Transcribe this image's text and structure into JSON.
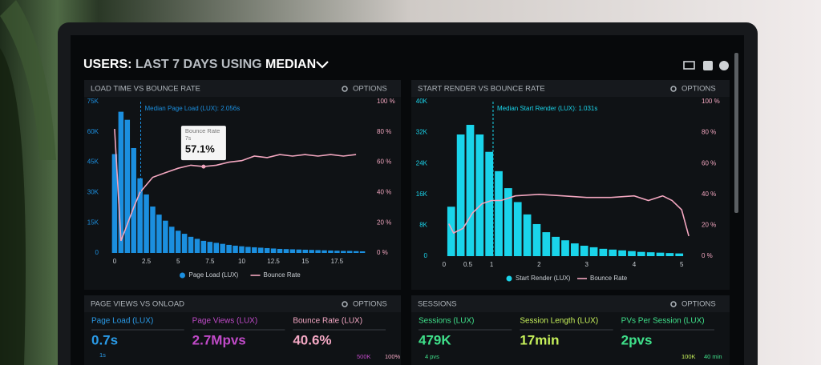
{
  "header": {
    "title": [
      "USERS:",
      "LAST 7 DAYS",
      "USING",
      "MEDIAN"
    ]
  },
  "chart_data": [
    {
      "type": "combo",
      "title": "LOAD TIME VS BOUNCE RATE",
      "options": "OPTIONS",
      "xlim": [
        -0.5,
        20
      ],
      "xticks": [
        0,
        2.5,
        5,
        7.5,
        10,
        12.5,
        15,
        17.5
      ],
      "ylim": [
        0,
        75000
      ],
      "yticks": [
        0,
        {
          "value": 15000,
          "label": "15K"
        },
        {
          "value": 30000,
          "label": "30K"
        },
        {
          "value": 45000,
          "label": "45K"
        },
        {
          "value": 60000,
          "label": "60K"
        },
        {
          "value": 75000,
          "label": "75K"
        }
      ],
      "y2lim": [
        0,
        100
      ],
      "y2ticks": [
        {
          "value": 0,
          "label": "0 %"
        },
        {
          "value": 20,
          "label": "20 %"
        },
        {
          "value": 40,
          "label": "40 %"
        },
        {
          "value": 60,
          "label": "60 %"
        },
        {
          "value": 80,
          "label": "80 %"
        },
        {
          "value": 100,
          "label": "100 %"
        }
      ],
      "median": {
        "value": 2.056,
        "label": "Median Page Load (LUX): 2.056s"
      },
      "tooltip": {
        "title": "Bounce Rate",
        "x": 7,
        "x_label": "7s",
        "value": 57.1,
        "value_label": "57.1%"
      },
      "series": [
        {
          "name": "Page Load (LUX)",
          "type": "bar",
          "color": "#1b8fdf",
          "x": [
            0,
            0.5,
            1,
            1.5,
            2,
            2.5,
            3,
            3.5,
            4,
            4.5,
            5,
            5.5,
            6,
            6.5,
            7,
            7.5,
            8,
            8.5,
            9,
            9.5,
            10,
            10.5,
            11,
            11.5,
            12,
            12.5,
            13,
            13.5,
            14,
            14.5,
            15,
            15.5,
            16,
            16.5,
            17,
            17.5,
            18,
            18.5,
            19,
            19.5
          ],
          "values": [
            49000,
            70000,
            66000,
            52000,
            37000,
            29000,
            23000,
            19000,
            16000,
            13000,
            11000,
            9500,
            8000,
            7000,
            6000,
            5500,
            5000,
            4500,
            4000,
            3600,
            3300,
            3000,
            2800,
            2600,
            2400,
            2200,
            2000,
            1900,
            1800,
            1700,
            1600,
            1500,
            1400,
            1300,
            1200,
            1100,
            1000,
            1000,
            900,
            800
          ]
        },
        {
          "name": "Bounce Rate",
          "type": "line",
          "axis": "y2",
          "color": "#f2a6bf",
          "x": [
            0,
            0.5,
            1,
            1.5,
            2,
            2.5,
            3,
            4,
            5,
            6,
            7,
            8,
            9,
            10,
            11,
            12,
            13,
            14,
            15,
            16,
            17,
            18,
            19
          ],
          "values": [
            82,
            8,
            19,
            30,
            40,
            45,
            50,
            53,
            56,
            58,
            57.1,
            58,
            60,
            61,
            64,
            63,
            65,
            64,
            65,
            64,
            65,
            64,
            65
          ]
        }
      ]
    },
    {
      "type": "combo",
      "title": "START RENDER VS BOUNCE RATE",
      "options": "OPTIONS",
      "xlim": [
        -0.15,
        5.25
      ],
      "xticks": [
        0,
        0.5,
        1,
        2,
        3,
        4,
        5
      ],
      "ylim": [
        0,
        40000
      ],
      "yticks": [
        0,
        {
          "value": 8000,
          "label": "8K"
        },
        {
          "value": 16000,
          "label": "16K"
        },
        {
          "value": 24000,
          "label": "24K"
        },
        {
          "value": 32000,
          "label": "32K"
        },
        {
          "value": 40000,
          "label": "40K"
        }
      ],
      "y2lim": [
        0,
        100
      ],
      "y2ticks": [
        {
          "value": 0,
          "label": "0 %"
        },
        {
          "value": 20,
          "label": "20 %"
        },
        {
          "value": 40,
          "label": "40 %"
        },
        {
          "value": 60,
          "label": "60 %"
        },
        {
          "value": 80,
          "label": "80 %"
        },
        {
          "value": 100,
          "label": "100 %"
        }
      ],
      "median": {
        "value": 1.031,
        "label": "Median Start Render (LUX): 1.031s"
      },
      "series": [
        {
          "name": "Start Render (LUX)",
          "type": "bar",
          "color": "#1ad4ea",
          "x": [
            0.15,
            0.35,
            0.55,
            0.75,
            0.95,
            1.15,
            1.35,
            1.55,
            1.75,
            1.95,
            2.15,
            2.35,
            2.55,
            2.75,
            2.95,
            3.15,
            3.35,
            3.55,
            3.75,
            3.95,
            4.15,
            4.35,
            4.55,
            4.75,
            4.95
          ],
          "values": [
            12800,
            31500,
            34000,
            31500,
            27000,
            22000,
            17600,
            14000,
            10800,
            8300,
            6200,
            5000,
            4100,
            3300,
            2700,
            2300,
            1900,
            1700,
            1500,
            1300,
            1100,
            1000,
            900,
            800,
            700
          ]
        },
        {
          "name": "Bounce Rate",
          "type": "line",
          "axis": "y2",
          "color": "#f2a6bf",
          "x": [
            0.1,
            0.2,
            0.4,
            0.6,
            0.8,
            1,
            1.2,
            1.5,
            2,
            2.5,
            3,
            3.5,
            4,
            4.3,
            4.6,
            4.8,
            5,
            5.15
          ],
          "values": [
            21,
            15,
            18,
            28,
            34,
            36,
            36,
            39,
            40,
            39,
            38,
            38,
            39,
            36,
            39,
            36,
            30,
            13
          ]
        }
      ]
    }
  ],
  "panels": [
    {
      "title": "PAGE VIEWS VS ONLOAD",
      "options": "OPTIONS",
      "metrics": [
        {
          "label": "Page Load (LUX)",
          "value": "0.7s",
          "color": "#2a9be8"
        },
        {
          "label": "Page Views (LUX)",
          "value": "2.7Mpvs",
          "color": "#c04ac8"
        },
        {
          "label": "Bounce Rate (LUX)",
          "value": "40.6%",
          "color": "#f4a8c4"
        }
      ],
      "notes": [
        "1s",
        "500K",
        "100%"
      ]
    },
    {
      "title": "SESSIONS",
      "options": "OPTIONS",
      "metrics": [
        {
          "label": "Sessions (LUX)",
          "value": "479K",
          "color": "#3fe08a"
        },
        {
          "label": "Session Length (LUX)",
          "value": "17min",
          "color": "#c6f05a"
        },
        {
          "label": "PVs Per Session (LUX)",
          "value": "2pvs",
          "color": "#3fe08a"
        }
      ],
      "notes": [
        "4 pvs",
        "100K",
        "40 min"
      ]
    }
  ]
}
